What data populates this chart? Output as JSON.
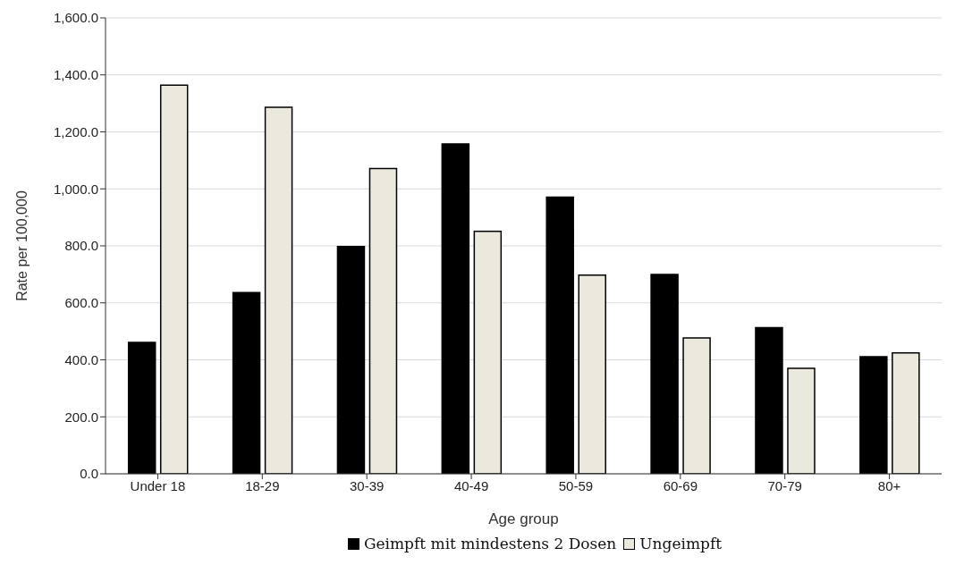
{
  "chart_data": {
    "type": "bar",
    "xlabel": "Age group",
    "ylabel": "Rate per 100,000",
    "categories": [
      "Under 18",
      "18-29",
      "30-39",
      "40-49",
      "50-59",
      "60-69",
      "70-79",
      "80+"
    ],
    "series": [
      {
        "name": "Geimpft mit mindestens 2 Dosen",
        "color": "#000000",
        "values": [
          461,
          636,
          798,
          1158,
          971,
          700,
          513,
          411
        ]
      },
      {
        "name": "Ungeimpft",
        "color": "#ebe9de",
        "values": [
          1364,
          1286,
          1071,
          851,
          697,
          477,
          370,
          424
        ]
      }
    ],
    "ylim": [
      0,
      1600
    ],
    "yticks": [
      {
        "value": 0,
        "label": "0.0"
      },
      {
        "value": 200,
        "label": "200.0"
      },
      {
        "value": 400,
        "label": "400.0"
      },
      {
        "value": 600,
        "label": "600.0"
      },
      {
        "value": 800,
        "label": "800.0"
      },
      {
        "value": 1000,
        "label": "1,000.0"
      },
      {
        "value": 1200,
        "label": "1,200.0"
      },
      {
        "value": 1400,
        "label": "1,400.0"
      },
      {
        "value": 1600,
        "label": "1,600.0"
      }
    ],
    "grid": "y",
    "legend": "bottom"
  }
}
